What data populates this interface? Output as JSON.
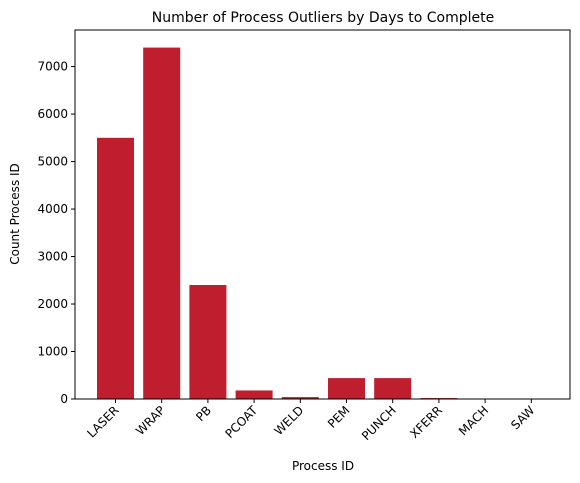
{
  "chart_data": {
    "type": "bar",
    "title": "Number of Process Outliers by Days to Complete",
    "xlabel": "Process ID",
    "ylabel": "Count Process ID",
    "categories": [
      "LASER",
      "WRAP",
      "PB",
      "PCOAT",
      "WELD",
      "PEM",
      "PUNCH",
      "XFERR",
      "MACH",
      "SAW"
    ],
    "values": [
      5500,
      7400,
      2400,
      180,
      40,
      440,
      440,
      20,
      5,
      3
    ],
    "ylim": [
      0,
      7770
    ],
    "yticks": [
      0,
      1000,
      2000,
      3000,
      4000,
      5000,
      6000,
      7000
    ],
    "bar_color": "#be1e2d",
    "grid": false,
    "legend": "none"
  }
}
